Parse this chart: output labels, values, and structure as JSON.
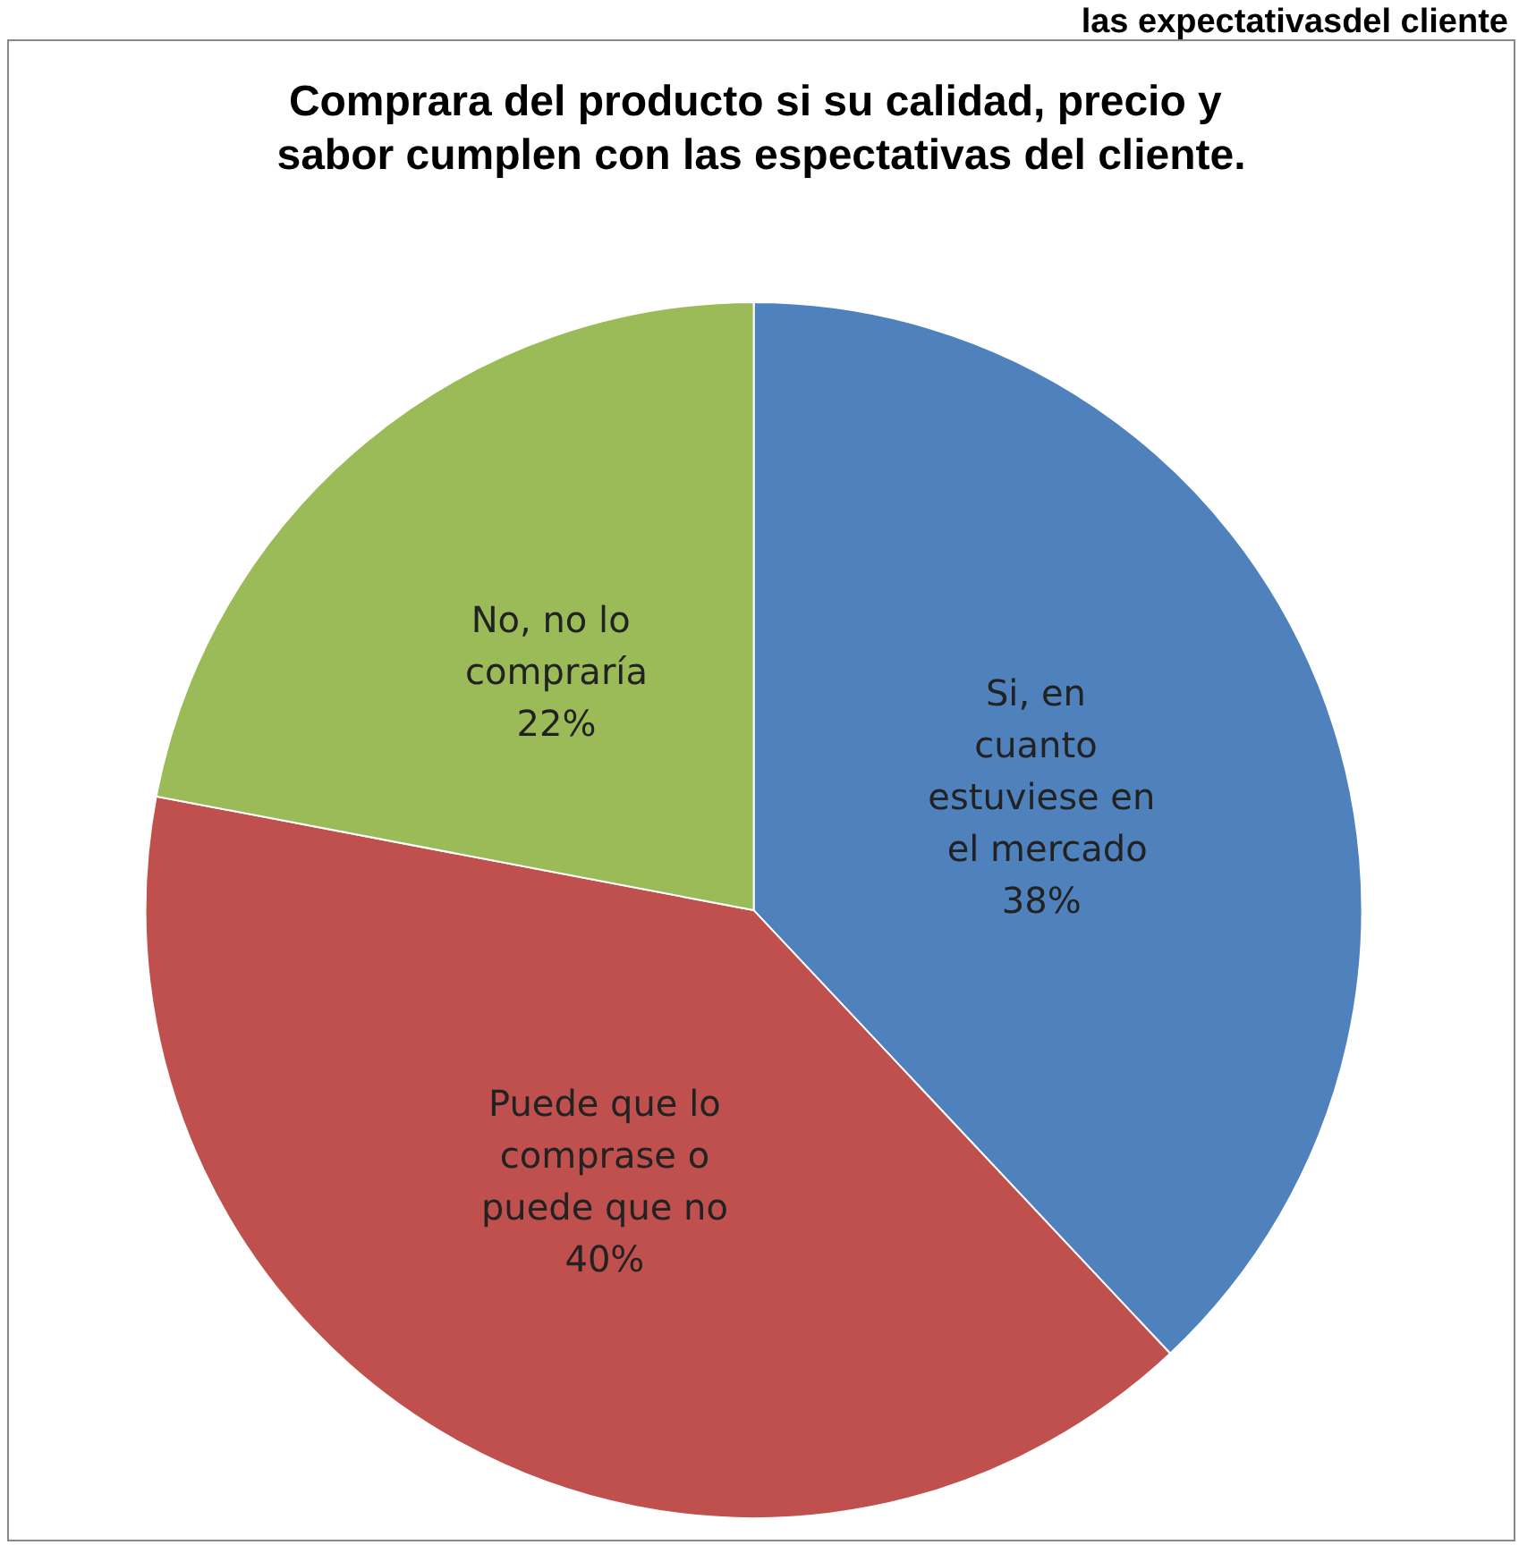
{
  "chart_data": {
    "type": "pie",
    "title": "Comprara del producto si su calidad, precio y sabor cumplen con las espectativas del cliente.",
    "annotations": [
      "las expectativasdel cliente"
    ],
    "categories": [
      "Si, en cuanto estuviese en el mercado",
      "Puede que lo comprase o puede que no",
      "No, no lo compraría"
    ],
    "values": [
      38,
      40,
      22
    ],
    "colors": [
      "#4f81bd",
      "#c0504d",
      "#9bbb59"
    ],
    "value_labels": [
      "38%",
      "40%",
      "22%"
    ],
    "legend": false
  }
}
